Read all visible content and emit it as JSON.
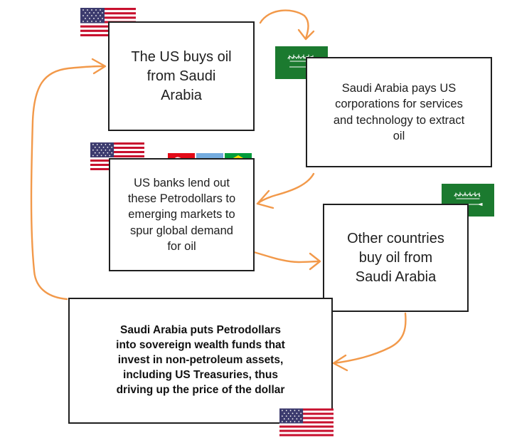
{
  "colors": {
    "arrow": "#f2994a",
    "box_border": "#1f1f1f",
    "us_red": "#c8102e",
    "us_blue": "#3c3b6e",
    "saudi_green": "#1b7a2f",
    "turkey_red": "#e30a17",
    "argentina_blue": "#74acdf",
    "brazil_green": "#009c3b",
    "brazil_yellow": "#ffdf00",
    "brazil_blue": "#002776"
  },
  "boxes": {
    "us_buys_oil": "The US buys oil\nfrom Saudi\nArabia",
    "saudi_pays_us": "Saudi Arabia pays US\ncorporations for services\nand technology to extract\noil",
    "us_banks_lend": "US banks lend out\nthese Petrodollars to\nemerging markets to\nspur global demand\nfor oil",
    "other_countries": "Other countries\nbuy oil from\nSaudi Arabia",
    "sovereign_wealth": "Saudi Arabia puts Petrodollars\ninto sovereign wealth funds that\ninvest in non-petroleum assets,\nincluding US Treasuries, thus\ndriving up the price of the dollar"
  },
  "flags": {
    "top_left": "us-flag",
    "top_right": "saudi-flag",
    "middle_left": "us-flag",
    "emerging": [
      "turkey-flag",
      "argentina-flag",
      "brazil-flag"
    ],
    "middle_right": "saudi-flag",
    "bottom": "us-flag"
  }
}
